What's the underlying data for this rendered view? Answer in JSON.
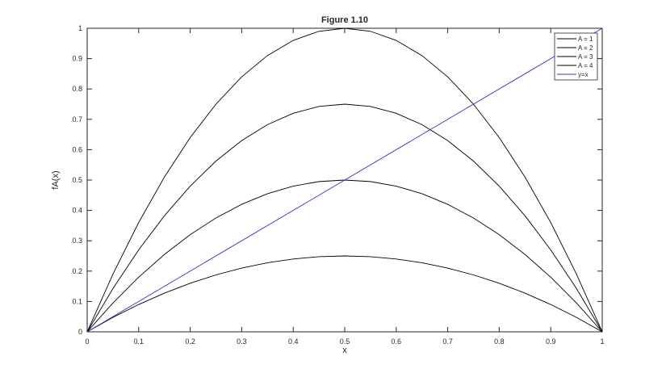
{
  "chart_data": {
    "type": "line",
    "title": "Figure 1.10",
    "xlabel": "x",
    "ylabel": "fA(x)",
    "xlim": [
      0,
      1
    ],
    "ylim": [
      0,
      1
    ],
    "xticks": [
      "0",
      "0.1",
      "0.2",
      "0.3",
      "0.4",
      "0.5",
      "0.6",
      "0.7",
      "0.8",
      "0.9",
      "1"
    ],
    "yticks": [
      "0",
      "0.1",
      "0.2",
      "0.3",
      "0.4",
      "0.5",
      "0.6",
      "0.7",
      "0.8",
      "0.9",
      "1"
    ],
    "grid": false,
    "legend_position": "top-right",
    "x": [
      0,
      0.05,
      0.1,
      0.15,
      0.2,
      0.25,
      0.3,
      0.35,
      0.4,
      0.45,
      0.5,
      0.55,
      0.6,
      0.65,
      0.7,
      0.75,
      0.8,
      0.85,
      0.9,
      0.95,
      1
    ],
    "series": [
      {
        "name": "A = 1",
        "color": "#000000",
        "values": [
          0,
          0.0475,
          0.09,
          0.1275,
          0.16,
          0.1875,
          0.21,
          0.2275,
          0.24,
          0.2475,
          0.25,
          0.2475,
          0.24,
          0.2275,
          0.21,
          0.1875,
          0.16,
          0.1275,
          0.09,
          0.0475,
          0
        ]
      },
      {
        "name": "A = 2",
        "color": "#000000",
        "values": [
          0,
          0.095,
          0.18,
          0.255,
          0.32,
          0.375,
          0.42,
          0.455,
          0.48,
          0.495,
          0.5,
          0.495,
          0.48,
          0.455,
          0.42,
          0.375,
          0.32,
          0.255,
          0.18,
          0.095,
          0
        ]
      },
      {
        "name": "A = 3",
        "color": "#000000",
        "values": [
          0,
          0.1425,
          0.27,
          0.3825,
          0.48,
          0.5625,
          0.63,
          0.6825,
          0.72,
          0.7425,
          0.75,
          0.7425,
          0.72,
          0.6825,
          0.63,
          0.5625,
          0.48,
          0.3825,
          0.27,
          0.1425,
          0
        ]
      },
      {
        "name": "A = 4",
        "color": "#000000",
        "values": [
          0,
          0.19,
          0.36,
          0.51,
          0.64,
          0.75,
          0.84,
          0.91,
          0.96,
          0.99,
          1,
          0.99,
          0.96,
          0.91,
          0.84,
          0.75,
          0.64,
          0.51,
          0.36,
          0.19,
          0
        ]
      },
      {
        "name": "y=x",
        "color": "#3333cc",
        "x": [
          0,
          1
        ],
        "values": [
          0,
          1
        ]
      }
    ]
  }
}
